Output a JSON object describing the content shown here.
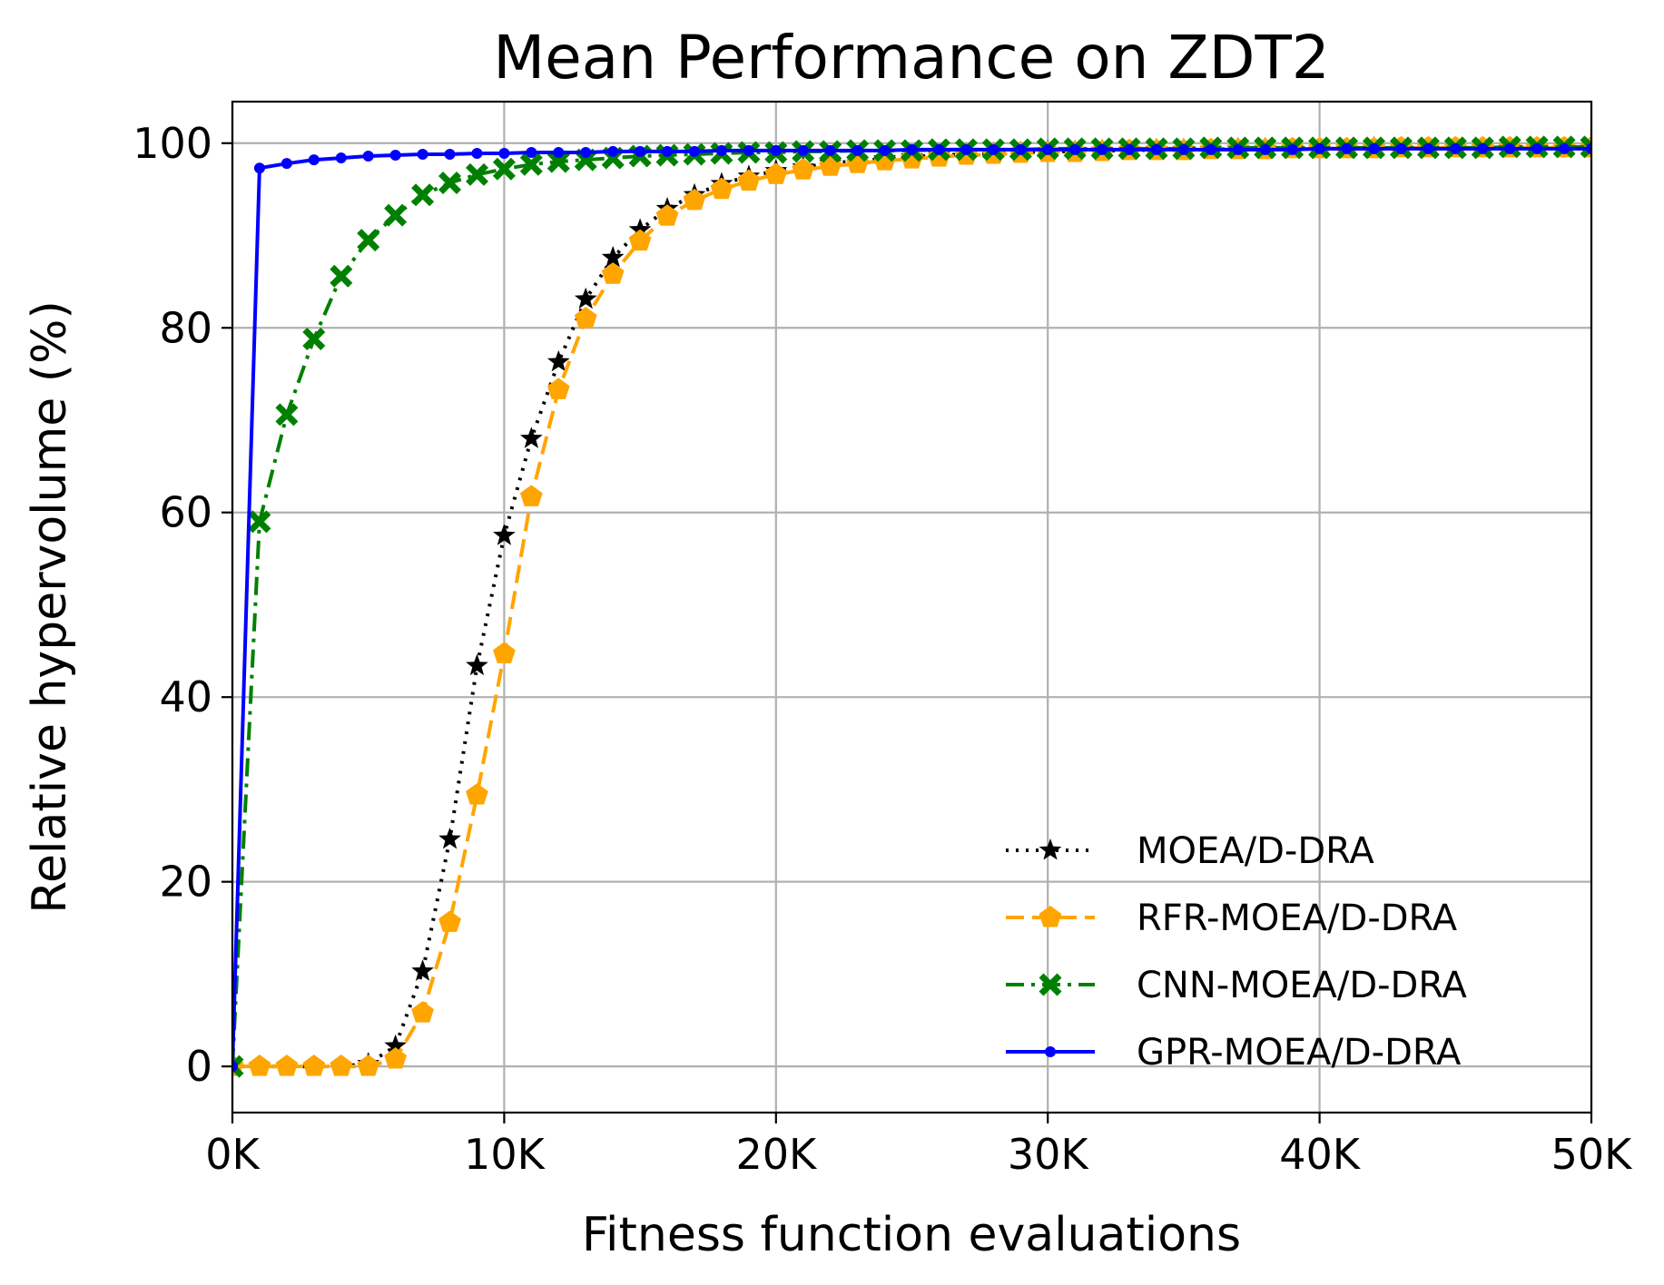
{
  "chart_data": {
    "type": "line",
    "title": "Mean Performance on ZDT2",
    "xlabel": "Fitness function evaluations",
    "ylabel": "Relative hypervolume (%)",
    "xlim": [
      0,
      50000
    ],
    "ylim": [
      -5,
      104.5
    ],
    "x_ticks": [
      0,
      10000,
      20000,
      30000,
      40000,
      50000
    ],
    "x_tick_labels": [
      "0K",
      "10K",
      "20K",
      "30K",
      "40K",
      "50K"
    ],
    "y_ticks": [
      0,
      20,
      40,
      60,
      80,
      100
    ],
    "y_tick_labels": [
      "0",
      "20",
      "40",
      "60",
      "80",
      "100"
    ],
    "grid": true,
    "legend_position": "lower-right",
    "x": [
      0,
      1000,
      2000,
      3000,
      4000,
      5000,
      6000,
      7000,
      8000,
      9000,
      10000,
      11000,
      12000,
      13000,
      14000,
      15000,
      16000,
      17000,
      18000,
      19000,
      20000,
      21000,
      22000,
      23000,
      24000,
      25000,
      26000,
      27000,
      28000,
      29000,
      30000,
      31000,
      32000,
      33000,
      34000,
      35000,
      36000,
      37000,
      38000,
      39000,
      40000,
      41000,
      42000,
      43000,
      44000,
      45000,
      46000,
      47000,
      48000,
      49000,
      50000
    ],
    "series": [
      {
        "name": "MOEA/D-DRA",
        "color": "#000000",
        "line_style": "dotted",
        "marker": "star",
        "values": [
          0,
          0,
          0,
          0,
          0,
          0.3,
          2.2,
          10.3,
          24.6,
          43.4,
          57.5,
          68.0,
          76.3,
          83.1,
          87.6,
          90.6,
          92.9,
          94.4,
          95.6,
          96.4,
          97.0,
          97.4,
          97.8,
          98.1,
          98.3,
          98.5,
          98.7,
          98.8,
          98.9,
          99.0,
          99.1,
          99.1,
          99.2,
          99.2,
          99.3,
          99.3,
          99.3,
          99.4,
          99.4,
          99.4,
          99.4,
          99.4,
          99.5,
          99.5,
          99.5,
          99.5,
          99.5,
          99.5,
          99.5,
          99.5,
          99.5
        ]
      },
      {
        "name": "RFR-MOEA/D-DRA",
        "color": "#ffa500",
        "line_style": "dashed",
        "marker": "pentagon",
        "values": [
          0,
          0,
          0,
          0,
          0,
          0,
          0.8,
          5.8,
          15.6,
          29.4,
          44.7,
          61.7,
          73.3,
          81.0,
          85.8,
          89.4,
          92.1,
          93.8,
          95.0,
          95.9,
          96.6,
          97.1,
          97.5,
          97.8,
          98.1,
          98.3,
          98.5,
          98.7,
          98.8,
          98.9,
          99.0,
          99.0,
          99.1,
          99.2,
          99.2,
          99.2,
          99.3,
          99.3,
          99.3,
          99.4,
          99.4,
          99.4,
          99.4,
          99.5,
          99.5,
          99.5,
          99.5,
          99.5,
          99.5,
          99.5,
          99.5
        ]
      },
      {
        "name": "CNN-MOEA/D-DRA",
        "color": "#008000",
        "line_style": "dashdot",
        "marker": "x",
        "values": [
          0,
          59.0,
          70.6,
          78.8,
          85.6,
          89.5,
          92.2,
          94.4,
          95.7,
          96.6,
          97.2,
          97.7,
          98.0,
          98.2,
          98.4,
          98.6,
          98.7,
          98.8,
          98.9,
          99.0,
          99.0,
          99.1,
          99.1,
          99.2,
          99.2,
          99.2,
          99.3,
          99.3,
          99.3,
          99.3,
          99.4,
          99.4,
          99.4,
          99.4,
          99.4,
          99.4,
          99.5,
          99.5,
          99.5,
          99.5,
          99.5,
          99.5,
          99.5,
          99.5,
          99.5,
          99.5,
          99.5,
          99.6,
          99.6,
          99.6,
          99.6
        ]
      },
      {
        "name": "GPR-MOEA/D-DRA",
        "color": "#0000ff",
        "line_style": "solid",
        "marker": "dot",
        "values": [
          0,
          97.3,
          97.8,
          98.2,
          98.4,
          98.6,
          98.7,
          98.8,
          98.8,
          98.9,
          98.9,
          99.0,
          99.0,
          99.0,
          99.1,
          99.1,
          99.1,
          99.1,
          99.2,
          99.2,
          99.2,
          99.2,
          99.2,
          99.2,
          99.2,
          99.3,
          99.3,
          99.3,
          99.3,
          99.3,
          99.3,
          99.3,
          99.3,
          99.3,
          99.3,
          99.3,
          99.3,
          99.3,
          99.3,
          99.3,
          99.4,
          99.4,
          99.4,
          99.4,
          99.4,
          99.4,
          99.4,
          99.4,
          99.4,
          99.4,
          99.4
        ]
      }
    ]
  }
}
